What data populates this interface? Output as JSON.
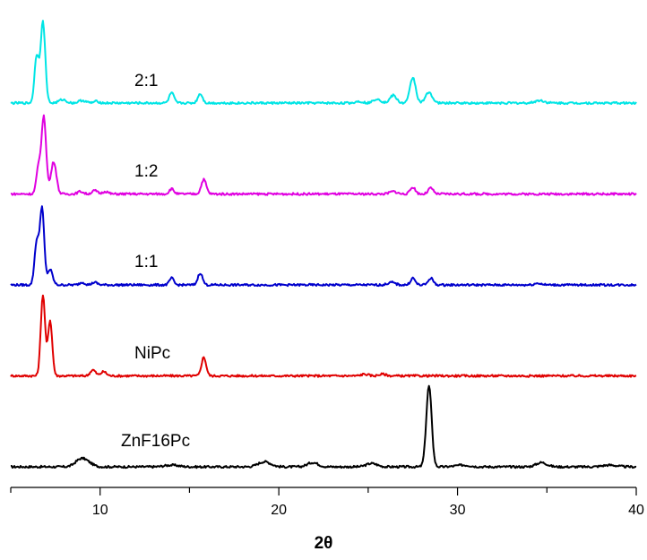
{
  "chart_data": {
    "type": "line",
    "title": "",
    "xlabel": "2θ",
    "ylabel": "",
    "xlim": [
      5,
      40
    ],
    "xticks": [
      10,
      20,
      30,
      40
    ],
    "grid": false,
    "legend": "none",
    "series": [
      {
        "name": "ZnF16Pc",
        "color": "#000000",
        "offset": 0,
        "peaks": [
          [
            8.9,
            0.08,
            0.3
          ],
          [
            9.3,
            0.04,
            0.3
          ],
          [
            14.0,
            0.02,
            0.4
          ],
          [
            19.2,
            0.06,
            0.35
          ],
          [
            21.9,
            0.05,
            0.3
          ],
          [
            25.2,
            0.04,
            0.3
          ],
          [
            28.4,
            0.95,
            0.15
          ],
          [
            30.3,
            0.02,
            0.4
          ],
          [
            34.7,
            0.05,
            0.3
          ],
          [
            38.5,
            0.02,
            0.4
          ]
        ]
      },
      {
        "name": "NiPc",
        "color": "#e00000",
        "offset": 1,
        "peaks": [
          [
            6.8,
            0.95,
            0.12
          ],
          [
            7.2,
            0.65,
            0.12
          ],
          [
            9.6,
            0.07,
            0.15
          ],
          [
            10.2,
            0.05,
            0.15
          ],
          [
            15.8,
            0.22,
            0.13
          ],
          [
            24.8,
            0.02,
            0.2
          ],
          [
            25.8,
            0.02,
            0.2
          ]
        ]
      },
      {
        "name": "1:1",
        "color": "#0000cc",
        "offset": 2,
        "peaks": [
          [
            6.45,
            0.5,
            0.12
          ],
          [
            6.75,
            0.9,
            0.12
          ],
          [
            7.2,
            0.18,
            0.14
          ],
          [
            9.0,
            0.03,
            0.15
          ],
          [
            9.7,
            0.03,
            0.15
          ],
          [
            14.0,
            0.08,
            0.12
          ],
          [
            15.6,
            0.14,
            0.13
          ],
          [
            26.3,
            0.03,
            0.2
          ],
          [
            27.5,
            0.08,
            0.13
          ],
          [
            28.5,
            0.08,
            0.14
          ],
          [
            34.5,
            0.02,
            0.2
          ]
        ]
      },
      {
        "name": "1:2",
        "color": "#e000e0",
        "offset": 3,
        "peaks": [
          [
            6.55,
            0.3,
            0.12
          ],
          [
            6.85,
            0.9,
            0.13
          ],
          [
            7.4,
            0.38,
            0.15
          ],
          [
            8.9,
            0.03,
            0.15
          ],
          [
            9.7,
            0.04,
            0.15
          ],
          [
            10.3,
            0.03,
            0.15
          ],
          [
            14.0,
            0.06,
            0.13
          ],
          [
            15.8,
            0.17,
            0.14
          ],
          [
            26.4,
            0.03,
            0.2
          ],
          [
            27.5,
            0.08,
            0.14
          ],
          [
            28.5,
            0.07,
            0.14
          ]
        ]
      },
      {
        "name": "2:1",
        "color": "#00e5e5",
        "offset": 4,
        "peaks": [
          [
            6.45,
            0.55,
            0.12
          ],
          [
            6.8,
            0.95,
            0.13
          ],
          [
            7.9,
            0.04,
            0.2
          ],
          [
            9.0,
            0.03,
            0.2
          ],
          [
            9.8,
            0.02,
            0.15
          ],
          [
            14.0,
            0.12,
            0.13
          ],
          [
            15.6,
            0.11,
            0.13
          ],
          [
            24.5,
            0.02,
            0.2
          ],
          [
            25.5,
            0.05,
            0.2
          ],
          [
            26.4,
            0.09,
            0.18
          ],
          [
            27.5,
            0.3,
            0.16
          ],
          [
            28.4,
            0.13,
            0.18
          ],
          [
            34.6,
            0.03,
            0.25
          ]
        ]
      }
    ]
  }
}
